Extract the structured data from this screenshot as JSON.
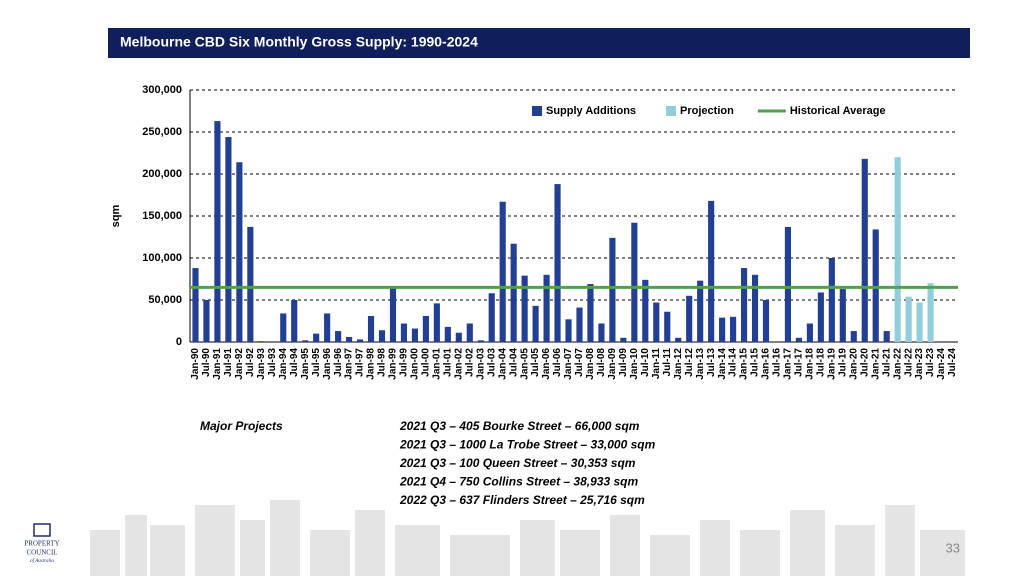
{
  "header": {
    "title": "Melbourne CBD Six Monthly Gross Supply: 1990-2024"
  },
  "chart_data": {
    "type": "bar",
    "y_label": "sqm",
    "categories": [
      "Jan-90",
      "Jul-90",
      "Jan-91",
      "Jul-91",
      "Jan-92",
      "Jul-92",
      "Jan-93",
      "Jul-93",
      "Jan-94",
      "Jul-94",
      "Jan-95",
      "Jul-95",
      "Jan-96",
      "Jul-96",
      "Jan-97",
      "Jul-97",
      "Jan-98",
      "Jul-98",
      "Jan-99",
      "Jul-99",
      "Jan-00",
      "Jul-00",
      "Jan-01",
      "Jul-01",
      "Jan-02",
      "Jul-02",
      "Jan-03",
      "Jul-03",
      "Jan-04",
      "Jul-04",
      "Jan-05",
      "Jul-05",
      "Jan-06",
      "Jul-06",
      "Jan-07",
      "Jul-07",
      "Jan-08",
      "Jul-08",
      "Jan-09",
      "Jul-09",
      "Jan-10",
      "Jul-10",
      "Jan-11",
      "Jul-11",
      "Jan-12",
      "Jul-12",
      "Jan-13",
      "Jul-13",
      "Jan-14",
      "Jul-14",
      "Jan-15",
      "Jul-15",
      "Jan-16",
      "Jul-16",
      "Jan-17",
      "Jul-17",
      "Jan-18",
      "Jul-18",
      "Jan-19",
      "Jul-19",
      "Jan-20",
      "Jul-20",
      "Jan-21",
      "Jul-21",
      "Jan-22",
      "Jul-22",
      "Jan-23",
      "Jul-23",
      "Jan-24",
      "Jul-24"
    ],
    "series": [
      {
        "name": "Supply Additions",
        "color": "#233f94",
        "values": [
          88000,
          50000,
          263000,
          244000,
          214000,
          137000,
          1000,
          0,
          34000,
          50000,
          2000,
          10000,
          34000,
          13000,
          6000,
          3000,
          31000,
          14000,
          65000,
          22000,
          16000,
          31000,
          46000,
          18000,
          11000,
          22000,
          2000,
          58000,
          167000,
          117000,
          79000,
          43000,
          80000,
          188000,
          27000,
          41000,
          69000,
          22000,
          124000,
          5000,
          142000,
          74000,
          47000,
          36000,
          5000,
          55000,
          73000,
          168000,
          29000,
          30000,
          88000,
          80000,
          50000,
          0,
          137000,
          5000,
          22000,
          59000,
          100000,
          63000,
          13000,
          218000,
          134000,
          13000,
          null,
          null,
          null,
          null,
          null,
          null
        ]
      },
      {
        "name": "Projection",
        "color": "#92cddc",
        "values": [
          null,
          null,
          null,
          null,
          null,
          null,
          null,
          null,
          null,
          null,
          null,
          null,
          null,
          null,
          null,
          null,
          null,
          null,
          null,
          null,
          null,
          null,
          null,
          null,
          null,
          null,
          null,
          null,
          null,
          null,
          null,
          null,
          null,
          null,
          null,
          null,
          null,
          null,
          null,
          null,
          null,
          null,
          null,
          null,
          null,
          null,
          null,
          null,
          null,
          null,
          null,
          null,
          null,
          null,
          null,
          null,
          null,
          null,
          null,
          null,
          null,
          null,
          null,
          null,
          220000,
          54000,
          47000,
          70000,
          null,
          null
        ]
      },
      {
        "name": "Historical Average",
        "color": "#4ea24e",
        "type": "hline",
        "value": 65000
      }
    ],
    "ylim": [
      0,
      300000
    ],
    "yticks": [
      {
        "value": 0,
        "label": "0"
      },
      {
        "value": 50000,
        "label": "50,000"
      },
      {
        "value": 100000,
        "label": "100,000"
      },
      {
        "value": 150000,
        "label": "150,000"
      },
      {
        "value": 200000,
        "label": "200,000"
      },
      {
        "value": 250000,
        "label": "250,000"
      },
      {
        "value": 300000,
        "label": "300,000"
      }
    ],
    "grid": true,
    "legend": "top-right"
  },
  "projects": {
    "heading": "Major Projects",
    "items": [
      "2021 Q3 – 405 Bourke Street – 66,000 sqm",
      "2021 Q3 – 1000 La Trobe Street – 33,000 sqm",
      "2021 Q3 – 100 Queen Street – 30,353 sqm",
      "2021 Q4 – 750 Collins Street – 38,933 sqm",
      "2022 Q3 – 637 Flinders Street – 25,716 sqm"
    ]
  },
  "logo": {
    "line1": "PROPERTY",
    "line2": "COUNCIL",
    "line3": "of Australia"
  },
  "page_number": "33"
}
